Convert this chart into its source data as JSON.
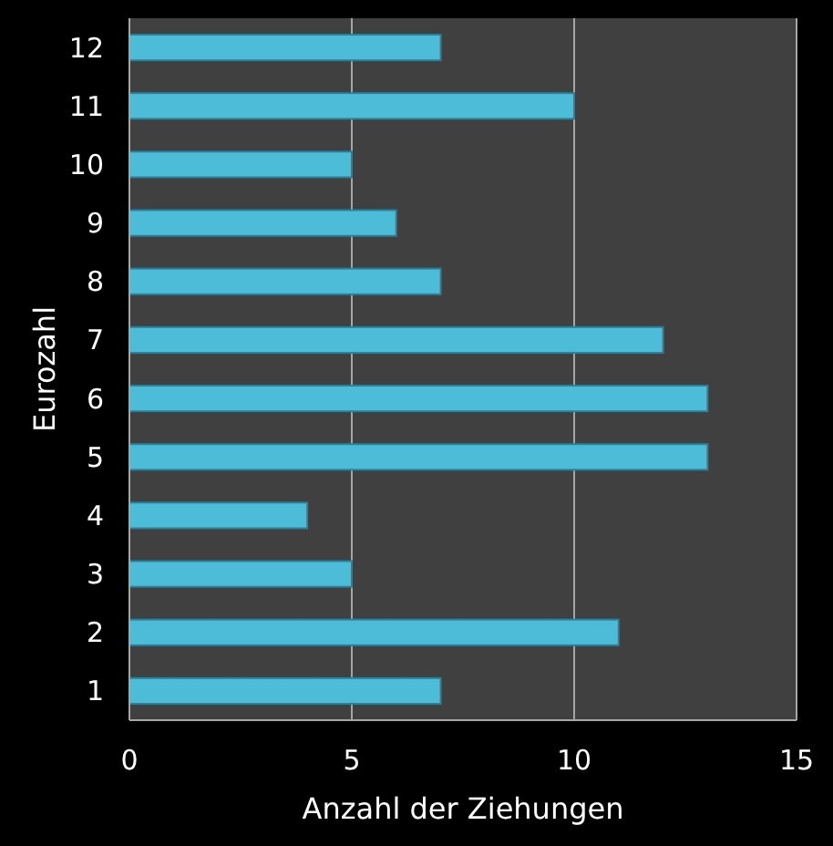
{
  "chart_data": {
    "type": "bar",
    "orientation": "horizontal",
    "xlabel": "Anzahl der Ziehungen",
    "ylabel": "Eurozahl",
    "categories": [
      "12",
      "11",
      "10",
      "9",
      "8",
      "7",
      "6",
      "5",
      "4",
      "3",
      "2",
      "1"
    ],
    "values": [
      7,
      10,
      5,
      6,
      7,
      12,
      13,
      13,
      4,
      5,
      11,
      7
    ],
    "color": "#4cbcd9",
    "xlim": [
      0,
      15
    ],
    "xticks": [
      0,
      5,
      10,
      15
    ],
    "grid": "x"
  }
}
